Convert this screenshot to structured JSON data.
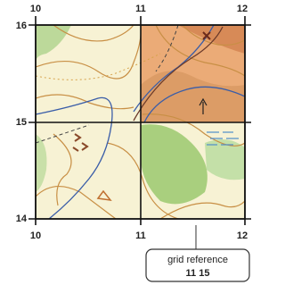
{
  "grid": {
    "top_labels": [
      "10",
      "11",
      "12"
    ],
    "left_labels": [
      "16",
      "15",
      "14"
    ],
    "bottom_labels": [
      "10",
      "11",
      "12"
    ]
  },
  "callout": {
    "title": "grid reference",
    "value": "11 15"
  }
}
